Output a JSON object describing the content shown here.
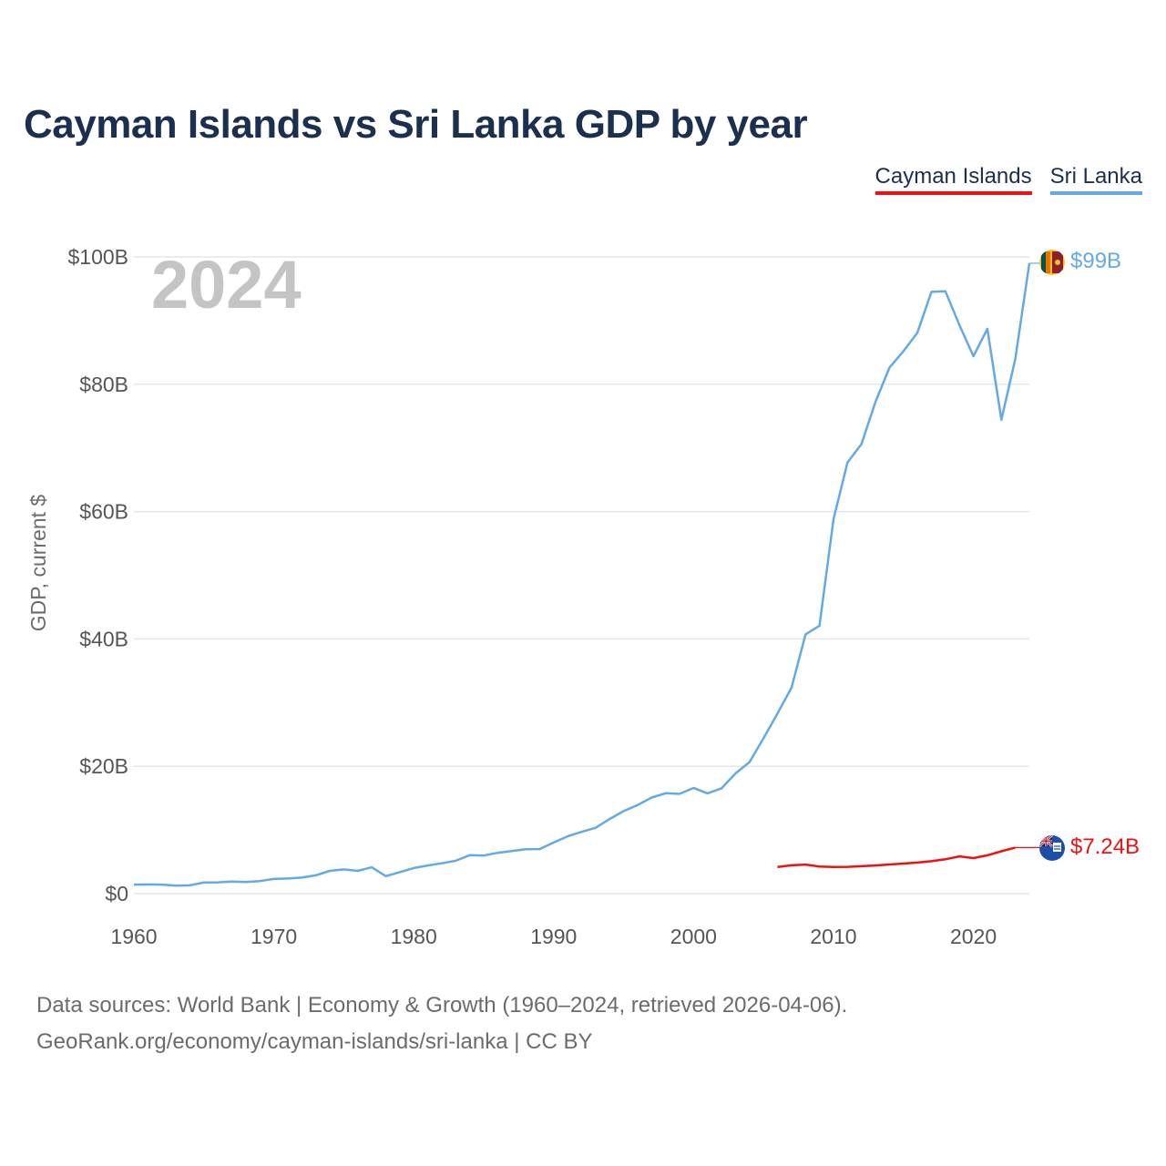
{
  "title": "Cayman Islands vs Sri Lanka GDP by year",
  "legend": [
    {
      "label": "Cayman Islands",
      "color": "#ee1111"
    },
    {
      "label": "Sri Lanka",
      "color": "#64a9e6"
    }
  ],
  "source_lines": [
    "Data sources: World Bank | Economy & Growth (1960–2024, retrieved 2026-04-06).",
    "GeoRank.org/economy/cayman-islands/sri-lanka | CC BY"
  ],
  "chart_data": {
    "type": "line",
    "title": "Cayman Islands vs Sri Lanka GDP by year",
    "xlabel": "",
    "ylabel": "GDP, current $",
    "xlim": [
      1960,
      2024
    ],
    "ylim": [
      0,
      100
    ],
    "y_unit": "billion USD",
    "x_ticks": [
      "1960",
      "1970",
      "1980",
      "1990",
      "2000",
      "2010",
      "2020"
    ],
    "y_ticks": [
      "$0",
      "$20B",
      "$40B",
      "$60B",
      "$80B",
      "$100B"
    ],
    "grid": true,
    "current_year_label": "2024",
    "series": [
      {
        "name": "Sri Lanka",
        "color": "#64a9e6",
        "end_label": "$99B",
        "points": [
          [
            1960,
            1.41
          ],
          [
            1961,
            1.44
          ],
          [
            1962,
            1.41
          ],
          [
            1963,
            1.26
          ],
          [
            1964,
            1.3
          ],
          [
            1965,
            1.75
          ],
          [
            1966,
            1.78
          ],
          [
            1967,
            1.89
          ],
          [
            1968,
            1.83
          ],
          [
            1969,
            1.97
          ],
          [
            1970,
            2.3
          ],
          [
            1971,
            2.37
          ],
          [
            1972,
            2.52
          ],
          [
            1973,
            2.87
          ],
          [
            1974,
            3.58
          ],
          [
            1975,
            3.81
          ],
          [
            1976,
            3.58
          ],
          [
            1977,
            4.13
          ],
          [
            1978,
            2.74
          ],
          [
            1979,
            3.37
          ],
          [
            1980,
            4.02
          ],
          [
            1981,
            4.42
          ],
          [
            1982,
            4.77
          ],
          [
            1983,
            5.17
          ],
          [
            1984,
            6.04
          ],
          [
            1985,
            5.98
          ],
          [
            1986,
            6.41
          ],
          [
            1987,
            6.68
          ],
          [
            1988,
            6.98
          ],
          [
            1989,
            6.99
          ],
          [
            1990,
            8.03
          ],
          [
            1991,
            9.0
          ],
          [
            1992,
            9.7
          ],
          [
            1993,
            10.35
          ],
          [
            1994,
            11.72
          ],
          [
            1995,
            12.96
          ],
          [
            1996,
            13.9
          ],
          [
            1997,
            15.09
          ],
          [
            1998,
            15.77
          ],
          [
            1999,
            15.66
          ],
          [
            2000,
            16.6
          ],
          [
            2001,
            15.75
          ],
          [
            2002,
            16.54
          ],
          [
            2003,
            18.88
          ],
          [
            2004,
            20.66
          ],
          [
            2005,
            24.41
          ],
          [
            2006,
            28.28
          ],
          [
            2007,
            32.35
          ],
          [
            2008,
            40.71
          ],
          [
            2009,
            42.07
          ],
          [
            2010,
            58.8
          ],
          [
            2011,
            67.7
          ],
          [
            2012,
            70.6
          ],
          [
            2013,
            77.2
          ],
          [
            2014,
            82.6
          ],
          [
            2015,
            85.2
          ],
          [
            2016,
            88.1
          ],
          [
            2017,
            94.5
          ],
          [
            2018,
            94.6
          ],
          [
            2019,
            89.3
          ],
          [
            2020,
            84.4
          ],
          [
            2021,
            88.7
          ],
          [
            2022,
            74.4
          ],
          [
            2023,
            84.0
          ],
          [
            2024,
            99.0
          ]
        ]
      },
      {
        "name": "Cayman Islands",
        "color": "#ee1111",
        "end_label": "$7.24B",
        "points": [
          [
            2006,
            4.19
          ],
          [
            2007,
            4.45
          ],
          [
            2008,
            4.56
          ],
          [
            2009,
            4.27
          ],
          [
            2010,
            4.18
          ],
          [
            2011,
            4.2
          ],
          [
            2012,
            4.31
          ],
          [
            2013,
            4.42
          ],
          [
            2014,
            4.58
          ],
          [
            2015,
            4.72
          ],
          [
            2016,
            4.88
          ],
          [
            2017,
            5.1
          ],
          [
            2018,
            5.4
          ],
          [
            2019,
            5.85
          ],
          [
            2020,
            5.58
          ],
          [
            2021,
            6.03
          ],
          [
            2022,
            6.65
          ],
          [
            2023,
            7.24
          ]
        ]
      }
    ]
  }
}
